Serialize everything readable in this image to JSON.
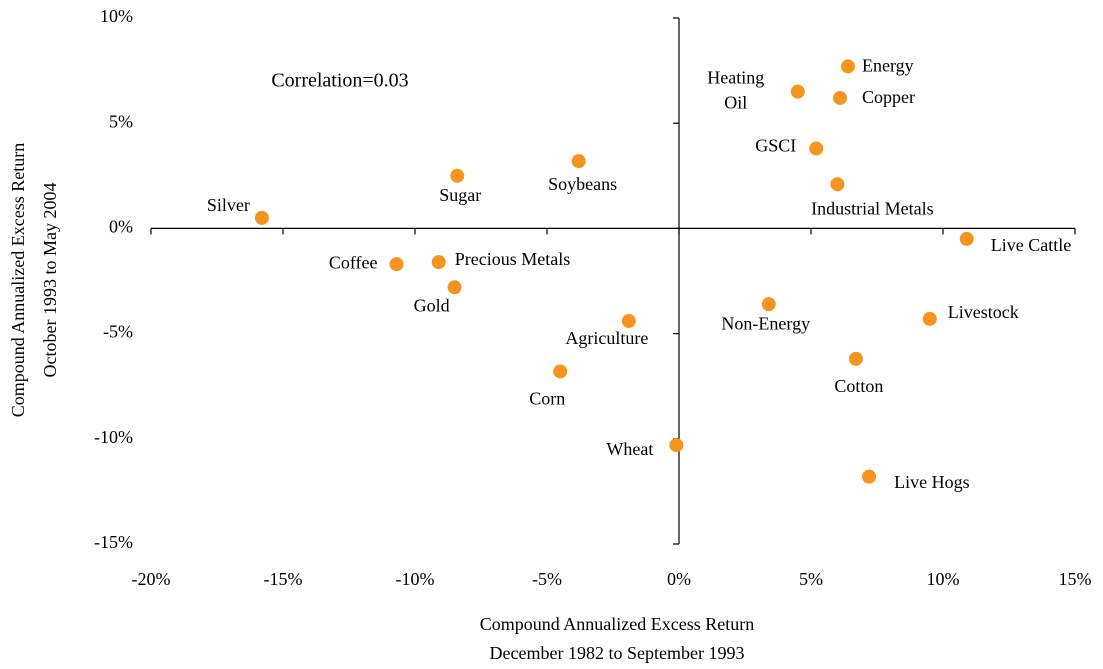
{
  "chart_data": {
    "type": "scatter",
    "annotation": "Correlation=0.03",
    "xlabel": [
      "Compound Annualized Excess Return",
      "December 1982 to September 1993"
    ],
    "ylabel": [
      "Compound Annualized Excess Return",
      "October 1993 to May 2004"
    ],
    "labels": [
      "Silver",
      "Sugar",
      "Soybeans",
      "Coffee",
      "Precious Metals",
      "Gold",
      "Agriculture",
      "Corn",
      "Wheat",
      "Heating Oil",
      "Energy",
      "Copper",
      "GSCI",
      "Industrial Metals",
      "Live Cattle",
      "Non-Energy",
      "Livestock",
      "Cotton",
      "Live Hogs"
    ],
    "x": [
      -15.8,
      -8.4,
      -3.8,
      -10.7,
      -9.1,
      -8.5,
      -1.9,
      -4.5,
      -0.1,
      4.5,
      6.4,
      6.1,
      5.2,
      6.0,
      10.9,
      3.4,
      9.5,
      6.7,
      7.2
    ],
    "values": [
      0.5,
      2.5,
      3.2,
      -1.7,
      -1.6,
      -2.8,
      -4.4,
      -6.8,
      -10.3,
      6.5,
      7.7,
      6.2,
      3.8,
      2.1,
      -0.5,
      -3.6,
      -4.3,
      -6.2,
      -11.8
    ],
    "color": "#f7941d",
    "xlim": [
      -20,
      15
    ],
    "ylim": [
      -15,
      10
    ],
    "xticks": [
      {
        "value": -20,
        "label": "-20%"
      },
      {
        "value": -15,
        "label": "-15%"
      },
      {
        "value": -10,
        "label": "-10%"
      },
      {
        "value": -5,
        "label": "-5%"
      },
      {
        "value": 0,
        "label": "0%"
      },
      {
        "value": 5,
        "label": "5%"
      },
      {
        "value": 10,
        "label": "10%"
      },
      {
        "value": 15,
        "label": "15%"
      }
    ],
    "yticks": [
      {
        "value": -15,
        "label": "-15%"
      },
      {
        "value": -10,
        "label": "-10%"
      },
      {
        "value": -5,
        "label": "-5%"
      },
      {
        "value": 0,
        "label": "0%"
      },
      {
        "value": 5,
        "label": "5%"
      },
      {
        "value": 10,
        "label": "10%"
      }
    ]
  }
}
